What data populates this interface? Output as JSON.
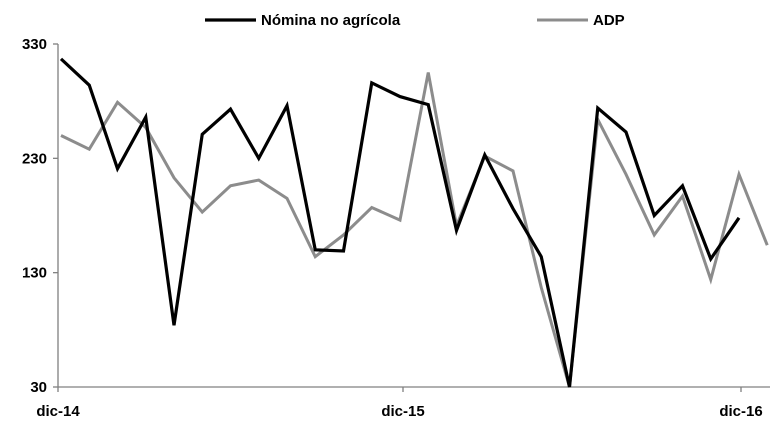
{
  "chart_data": {
    "type": "line",
    "title": "",
    "xlabel": "",
    "ylabel": "",
    "ylim": [
      30,
      330
    ],
    "y_ticks": [
      "330",
      "230",
      "130",
      "30"
    ],
    "x_tick_labels": [
      "dic-14",
      "dic-15",
      "dic-16"
    ],
    "legend_placement": "top",
    "grid": false,
    "series": [
      {
        "name": "Nómina no agrícola",
        "color": "#000000",
        "values": [
          317,
          294,
          221,
          266,
          84,
          251,
          273,
          230,
          276,
          150,
          149,
          296,
          284,
          277,
          167,
          233,
          186,
          144,
          30,
          274,
          253,
          180,
          206,
          142,
          178
        ]
      },
      {
        "name": "ADP",
        "color": "#8c8c8c",
        "values": [
          250,
          238,
          279,
          257,
          213,
          183,
          206,
          211,
          195,
          144,
          163,
          187,
          176,
          305,
          171,
          232,
          219,
          117,
          30,
          264,
          216,
          163,
          197,
          124,
          216,
          154
        ]
      }
    ]
  }
}
